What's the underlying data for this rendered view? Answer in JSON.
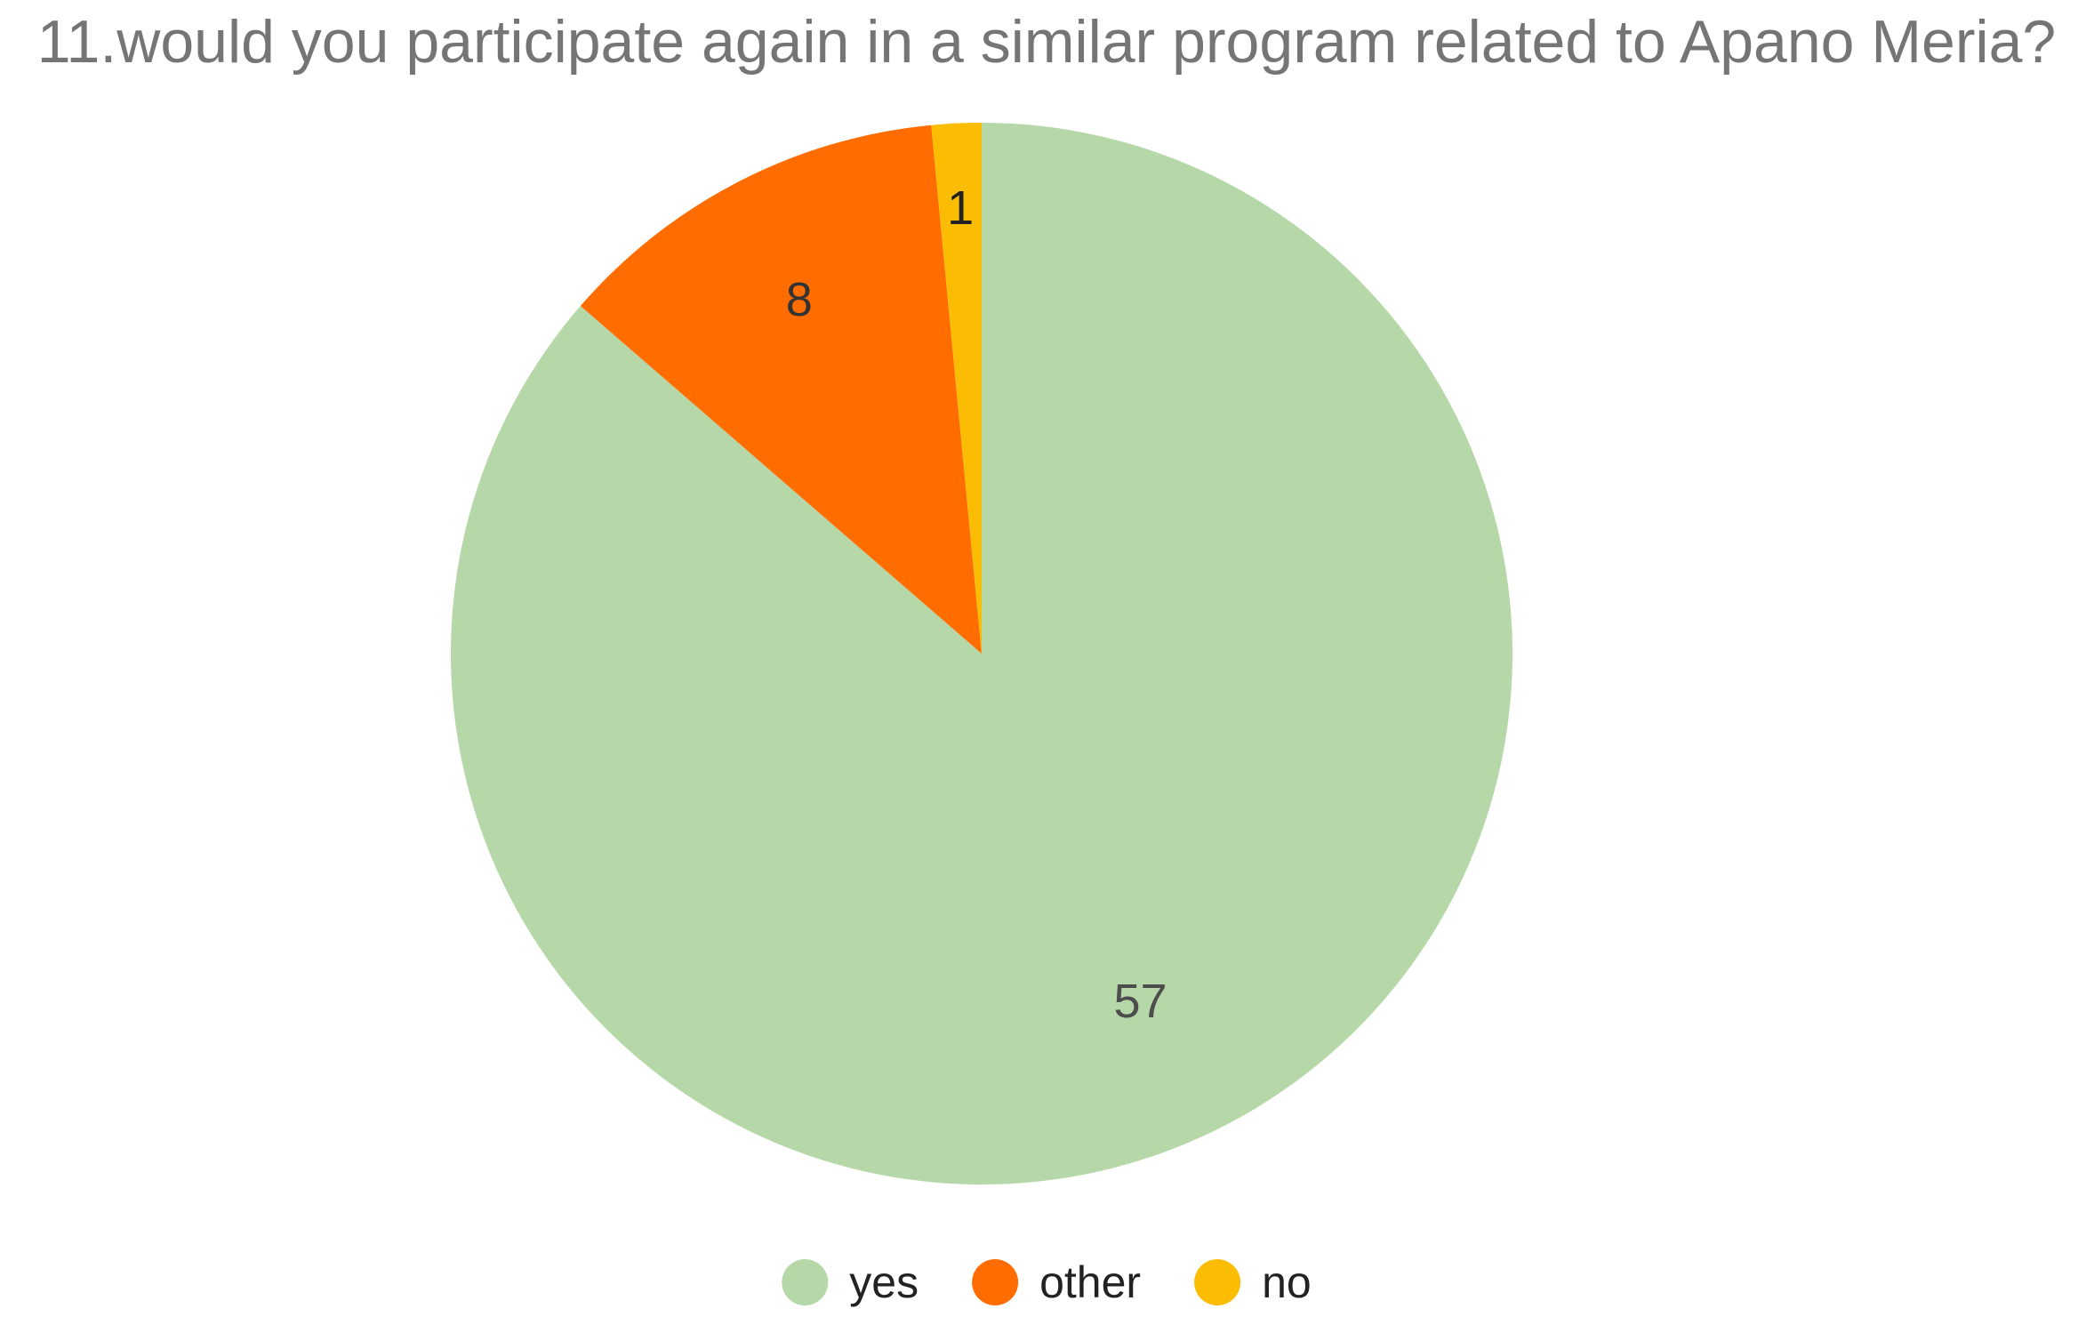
{
  "chart_data": {
    "type": "pie",
    "title": "11.would you participate again in a similar program related to Apano Meria?",
    "series": [
      {
        "name": "yes",
        "value": 57,
        "label": "57",
        "color": "#b6d7a8",
        "label_color": "#4d4d4d"
      },
      {
        "name": "other",
        "value": 8,
        "label": "8",
        "color": "#ff6d01",
        "label_color": "#333333"
      },
      {
        "name": "no",
        "value": 1,
        "label": "1",
        "color": "#fbbc04",
        "label_color": "#222222"
      }
    ],
    "legend_placement": "bottom",
    "start": "top, clockwise, largest first"
  }
}
